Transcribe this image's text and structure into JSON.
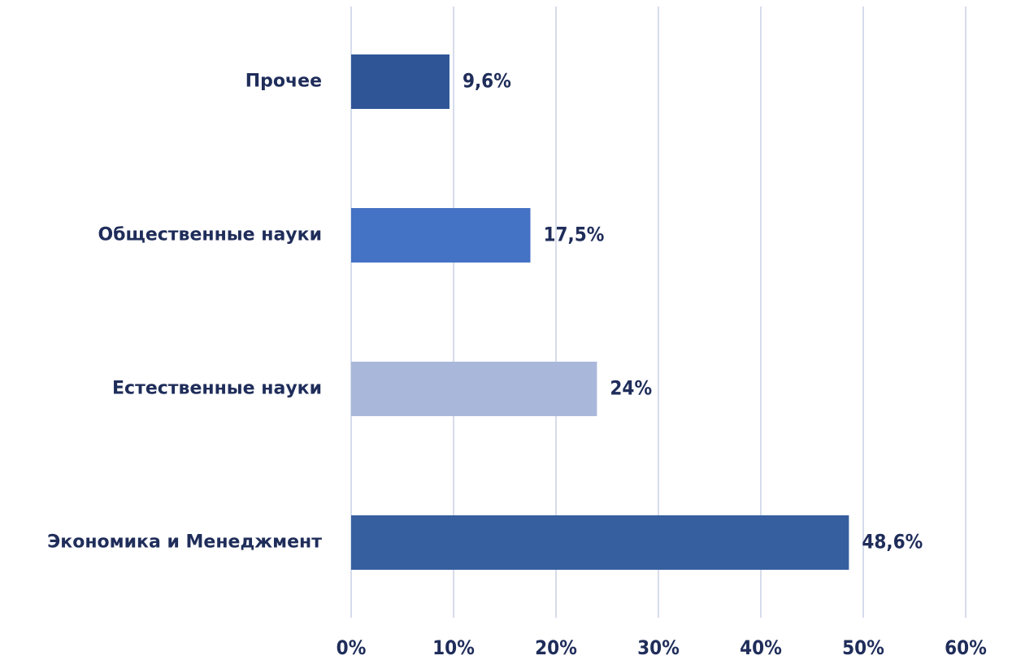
{
  "chart_data": {
    "type": "bar",
    "orientation": "horizontal",
    "categories": [
      "Прочее",
      "Общественные науки",
      "Естественные науки",
      "Экономика и Менеджмент"
    ],
    "values": [
      9.6,
      17.5,
      24,
      48.6
    ],
    "value_labels": [
      "9,6%",
      "17,5%",
      "24%",
      "48,6%"
    ],
    "colors": [
      "#2f5597",
      "#4472c4",
      "#a9b8da",
      "#365f9f"
    ],
    "xlim": [
      0,
      60
    ],
    "xticks": [
      {
        "value": 0,
        "label": "0%"
      },
      {
        "value": 10,
        "label": "10%"
      },
      {
        "value": 20,
        "label": "20%"
      },
      {
        "value": 30,
        "label": "30%"
      },
      {
        "value": 40,
        "label": "40%"
      },
      {
        "value": 50,
        "label": "50%"
      },
      {
        "value": 60,
        "label": "60%"
      }
    ],
    "grid": true
  }
}
